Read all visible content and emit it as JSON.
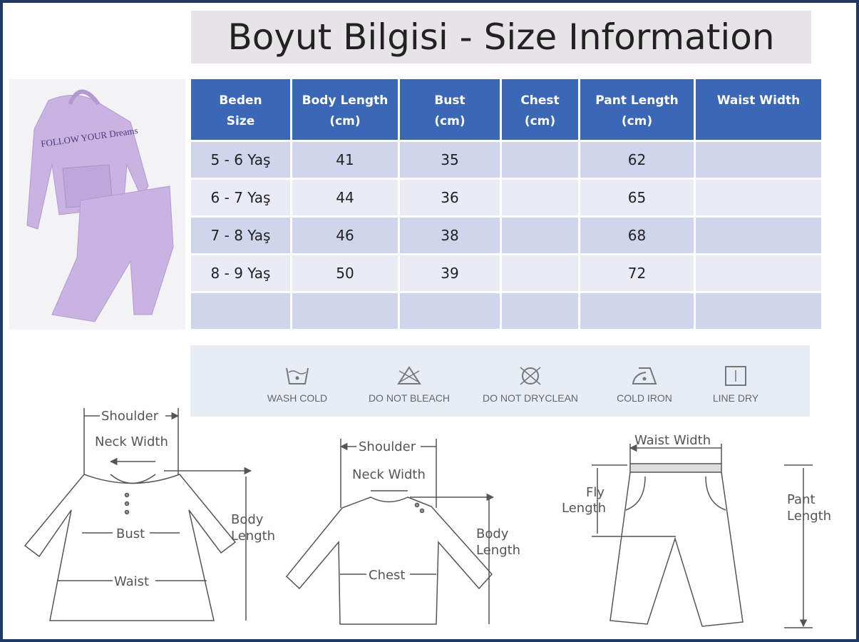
{
  "title": "Boyut Bilgisi - Size Information",
  "product_image": {
    "print_text": "FOLLOW YOUR Dreams",
    "color": "#c9b3e3"
  },
  "table": {
    "headers": [
      [
        "Beden",
        "Size"
      ],
      [
        "Body Length",
        "(cm)"
      ],
      [
        "Bust",
        "(cm)"
      ],
      [
        "Chest",
        "(cm)"
      ],
      [
        "Pant Length",
        "(cm)"
      ],
      [
        "Waist Width",
        ""
      ]
    ],
    "rows": [
      [
        "5 - 6 Yaş",
        "41",
        "35",
        "",
        "62",
        ""
      ],
      [
        "6 - 7 Yaş",
        "44",
        "36",
        "",
        "65",
        ""
      ],
      [
        "7 - 8 Yaş",
        "46",
        "38",
        "",
        "68",
        ""
      ],
      [
        "8 - 9 Yaş",
        "50",
        "39",
        "",
        "72",
        ""
      ],
      [
        "",
        "",
        "",
        "",
        "",
        ""
      ]
    ]
  },
  "care": [
    {
      "label": "WASH COLD",
      "icon": "wash-cold-icon"
    },
    {
      "label": "DO NOT BLEACH",
      "icon": "no-bleach-icon"
    },
    {
      "label": "DO NOT DRYCLEAN",
      "icon": "no-dryclean-icon"
    },
    {
      "label": "COLD IRON",
      "icon": "cold-iron-icon"
    },
    {
      "label": "LINE DRY",
      "icon": "line-dry-icon"
    }
  ],
  "diagrams": {
    "dress": {
      "shoulder": "Shoulder",
      "neck": "Neck Width",
      "bust": "Bust",
      "waist": "Waist",
      "body1": "Body",
      "body2": "Length"
    },
    "shirt": {
      "shoulder": "Shoulder",
      "neck": "Neck Width",
      "chest": "Chest",
      "body1": "Body",
      "body2": "Length"
    },
    "pants": {
      "waist": "Waist Width",
      "fly1": "Fly",
      "fly2": "Length",
      "pant1": "Pant",
      "pant2": "Length"
    }
  },
  "colors": {
    "header": "#3b67b7",
    "row_dark": "#cfd5ea",
    "row_light": "#e9ebf5",
    "frame": "#1f3864"
  }
}
